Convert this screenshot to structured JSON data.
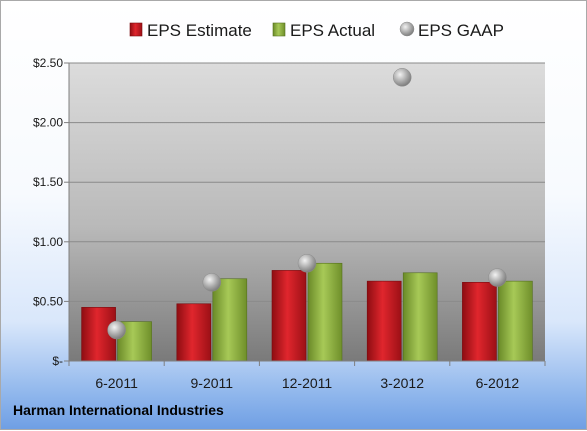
{
  "chart_data": {
    "type": "bar",
    "categories": [
      "6-2011",
      "9-2011",
      "12-2011",
      "3-2012",
      "6-2012"
    ],
    "series": [
      {
        "name": "EPS Estimate",
        "kind": "bar",
        "color": "#c8161d",
        "values": [
          0.45,
          0.48,
          0.76,
          0.67,
          0.66
        ]
      },
      {
        "name": "EPS Actual",
        "kind": "bar",
        "color": "#8fb03c",
        "values": [
          0.33,
          0.69,
          0.82,
          0.74,
          0.67
        ]
      },
      {
        "name": "EPS GAAP",
        "kind": "scatter",
        "color": "#a9a9a9",
        "values": [
          0.26,
          0.66,
          0.82,
          2.38,
          0.7
        ]
      }
    ],
    "ylim": [
      0,
      2.5
    ],
    "yticks": [
      0,
      0.5,
      1.0,
      1.5,
      2.0,
      2.5
    ],
    "ytick_labels": [
      "$-",
      "$0.50",
      "$1.00",
      "$1.50",
      "$2.00",
      "$2.50"
    ],
    "legend": "top",
    "grid": true,
    "company": "Harman International Industries"
  }
}
